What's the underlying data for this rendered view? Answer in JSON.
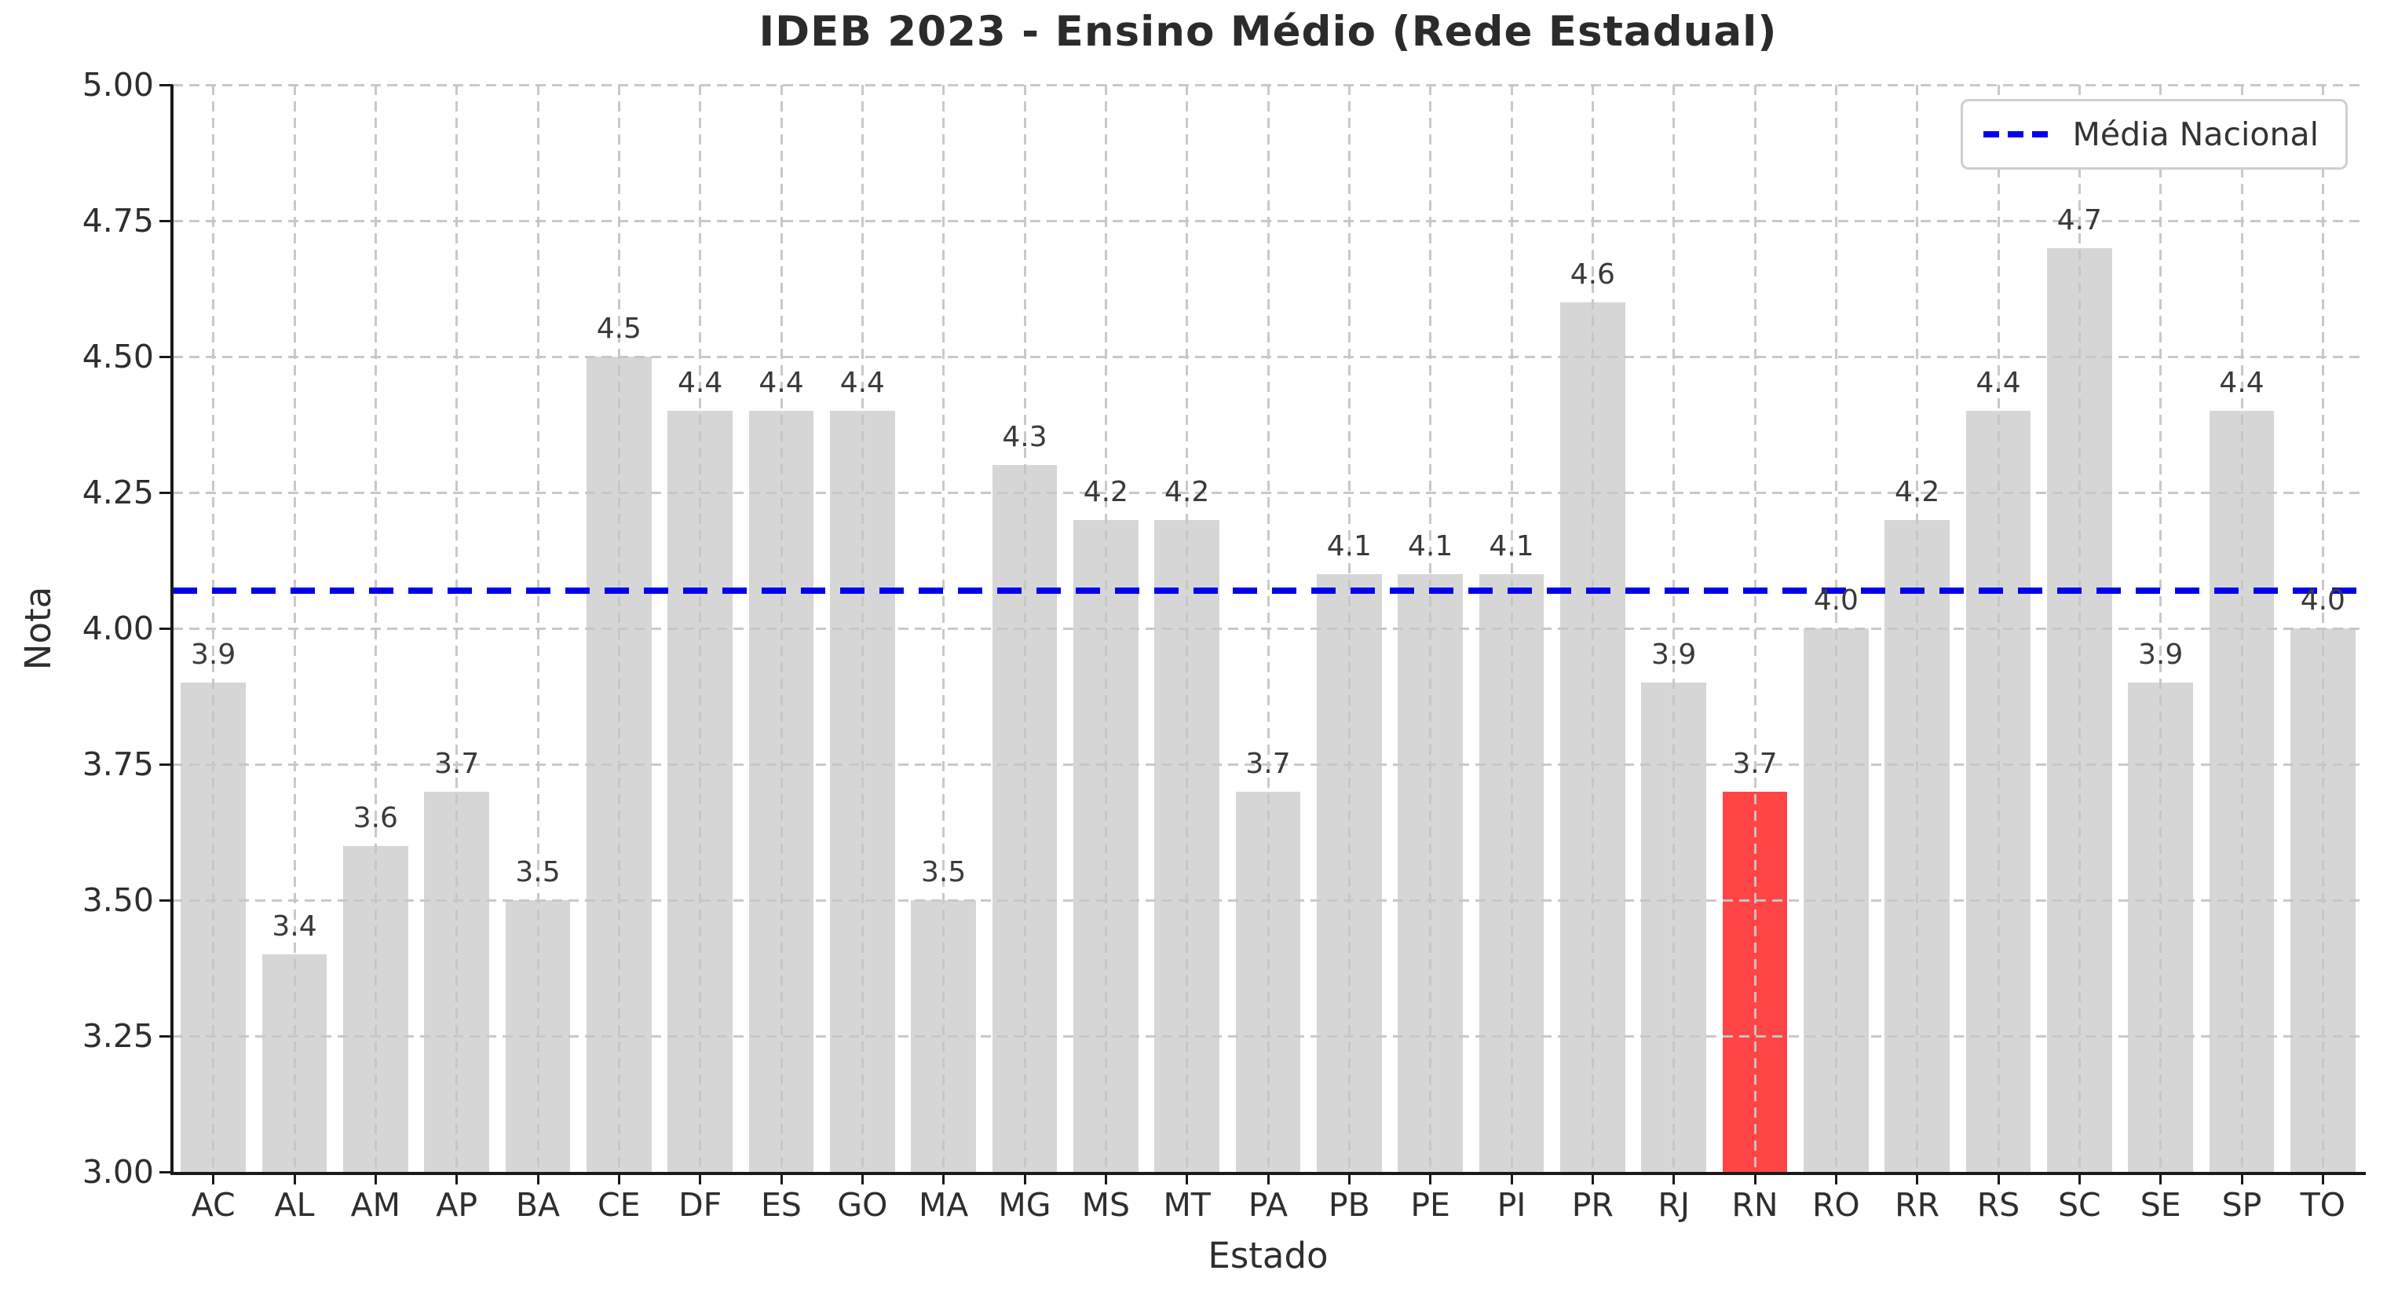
{
  "chart_data": {
    "type": "bar",
    "title": "IDEB 2023 - Ensino Médio (Rede Estadual)",
    "xlabel": "Estado",
    "ylabel": "Nota",
    "ylim": [
      3.0,
      5.0
    ],
    "yticks": [
      3.0,
      3.25,
      3.5,
      3.75,
      4.0,
      4.25,
      4.5,
      4.75,
      5.0
    ],
    "grid": true,
    "grid_style": "dashed",
    "categories": [
      "AC",
      "AL",
      "AM",
      "AP",
      "BA",
      "CE",
      "DF",
      "ES",
      "GO",
      "MA",
      "MG",
      "MS",
      "MT",
      "PA",
      "PB",
      "PE",
      "PI",
      "PR",
      "RJ",
      "RN",
      "RO",
      "RR",
      "RS",
      "SC",
      "SE",
      "SP",
      "TO"
    ],
    "values": [
      3.9,
      3.4,
      3.6,
      3.7,
      3.5,
      4.5,
      4.4,
      4.4,
      4.4,
      3.5,
      4.3,
      4.2,
      4.2,
      3.7,
      4.1,
      4.1,
      4.1,
      4.6,
      3.9,
      3.7,
      4.0,
      4.2,
      4.4,
      4.7,
      3.9,
      4.4,
      4.0
    ],
    "value_labels": [
      "3.9",
      "3.4",
      "3.6",
      "3.7",
      "3.5",
      "4.5",
      "4.4",
      "4.4",
      "4.4",
      "3.5",
      "4.3",
      "4.2",
      "4.2",
      "3.7",
      "4.1",
      "4.1",
      "4.1",
      "4.6",
      "3.9",
      "3.7",
      "4.0",
      "4.2",
      "4.4",
      "4.7",
      "3.9",
      "4.4",
      "4.0"
    ],
    "highlight_category": "RN",
    "mean_line": {
      "value": 4.07,
      "label": "Média Nacional"
    },
    "legend": {
      "position": "upper right",
      "entries": [
        "Média Nacional"
      ]
    },
    "colors": {
      "bar": "#d6d6d6",
      "highlight": "#ff4545",
      "mean_line": "#0202ee",
      "grid": "#c6c6c6",
      "spine": "#1a1a1a",
      "text": "#2e2e2e"
    }
  }
}
